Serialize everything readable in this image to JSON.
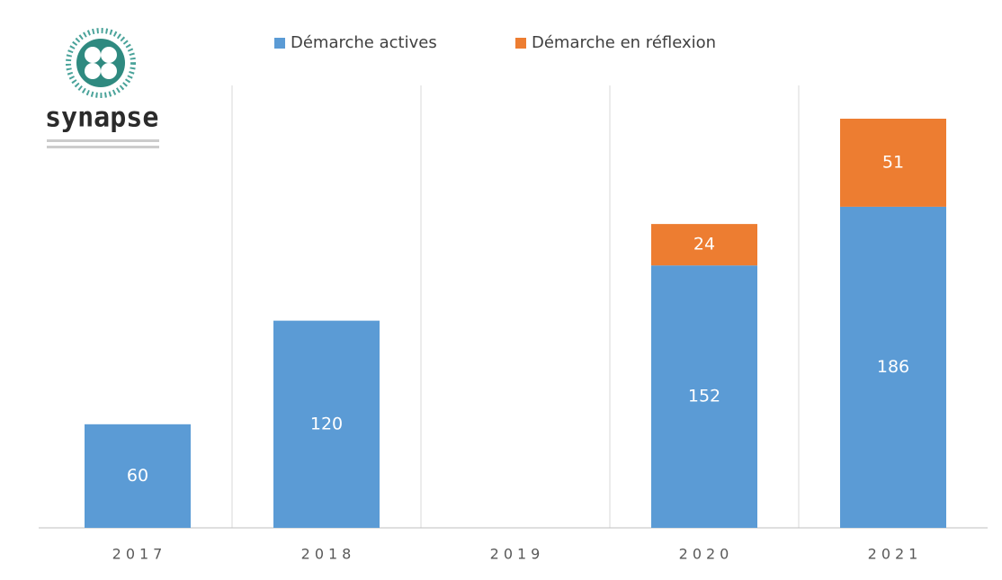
{
  "chart_data": {
    "type": "stacked-bar",
    "logo": "synapse",
    "categories": [
      "2017",
      "2018",
      "2019",
      "2020",
      "2021"
    ],
    "series": [
      {
        "name": "Démarche actives",
        "color": "#5b9bd5",
        "values": [
          60,
          120,
          null,
          152,
          186
        ]
      },
      {
        "name": "Démarche en réflexion",
        "color": "#ed7d31",
        "values": [
          null,
          null,
          null,
          24,
          51
        ]
      }
    ],
    "legend": "top"
  }
}
